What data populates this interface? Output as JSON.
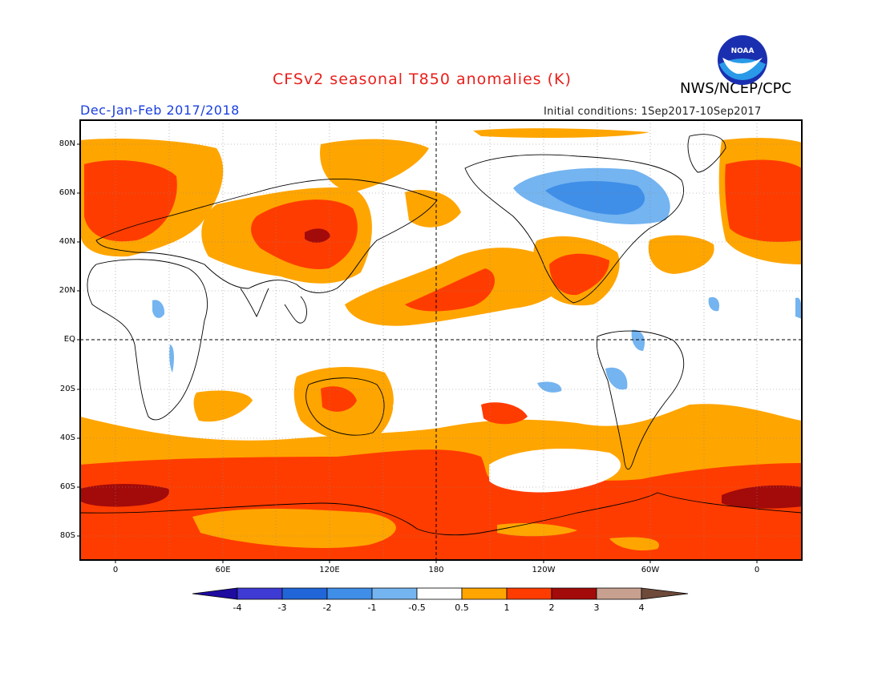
{
  "header": {
    "title": "CFSv2 seasonal T850 anomalies (K)",
    "agency": "NWS/NCEP/CPC",
    "season": "Dec-Jan-Feb 2017/2018",
    "initial_conditions": "Initial conditions: 1Sep2017-10Sep2017",
    "logo_icon": "noaa-logo-icon"
  },
  "map": {
    "lat_labels": [
      "80N",
      "60N",
      "40N",
      "20N",
      "EQ",
      "20S",
      "40S",
      "60S",
      "80S"
    ],
    "lon_labels": [
      "0",
      "60E",
      "120E",
      "180",
      "120W",
      "60W",
      "0"
    ]
  },
  "colorbar": {
    "labels": [
      "-4",
      "-3",
      "-2",
      "-1",
      "-0.5",
      "0.5",
      "1",
      "2",
      "3",
      "4"
    ],
    "colors": [
      "#1e0ba0",
      "#3e3bd4",
      "#2166d8",
      "#3f8ee8",
      "#74b4f0",
      "#ffffff",
      "#ffa500",
      "#ff3c00",
      "#a30a0a",
      "#c8a090",
      "#6e4a3a"
    ]
  },
  "chart_data": {
    "type": "heatmap",
    "title": "CFSv2 seasonal T850 anomalies (K)",
    "subtitle": "Dec-Jan-Feb 2017/2018",
    "units": "K",
    "levels": [
      -4,
      -3,
      -2,
      -1,
      -0.5,
      0.5,
      1,
      2,
      3,
      4
    ]
  }
}
